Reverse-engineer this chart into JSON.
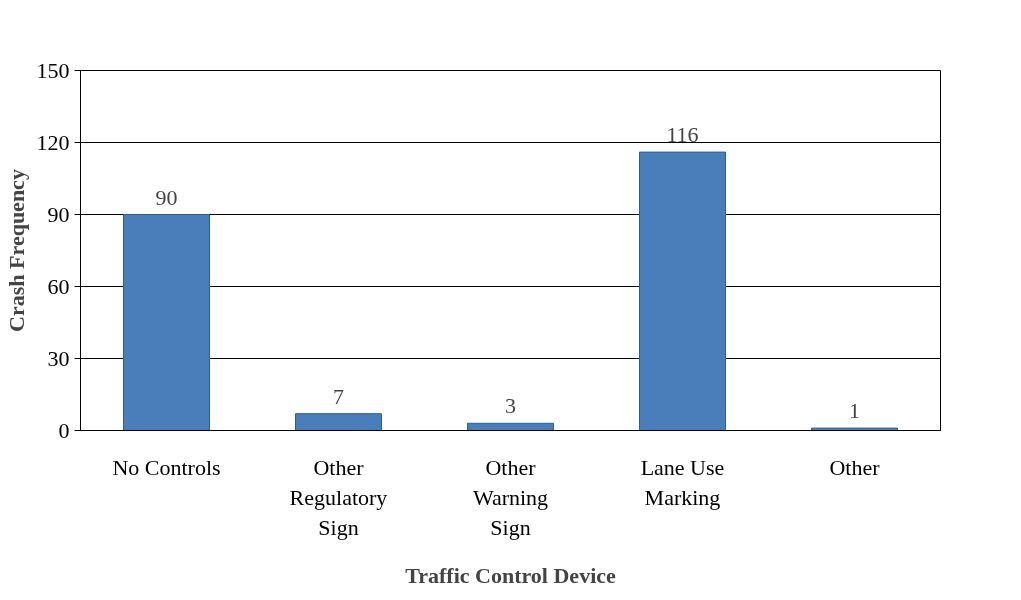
{
  "chart_data": {
    "type": "bar",
    "xlabel": "Traffic Control Device",
    "ylabel": "Crash Frequency",
    "categories": [
      "No Controls",
      "Other\nRegulatory\nSign",
      "Other\nWarning\nSign",
      "Lane Use\nMarking",
      "Other"
    ],
    "values": [
      90,
      7,
      3,
      116,
      1
    ],
    "color": "#4a7ebb",
    "ylim": [
      0,
      150
    ],
    "yticks": [
      0,
      30,
      60,
      90,
      120,
      150
    ],
    "grid": "y",
    "data_labels": true
  }
}
